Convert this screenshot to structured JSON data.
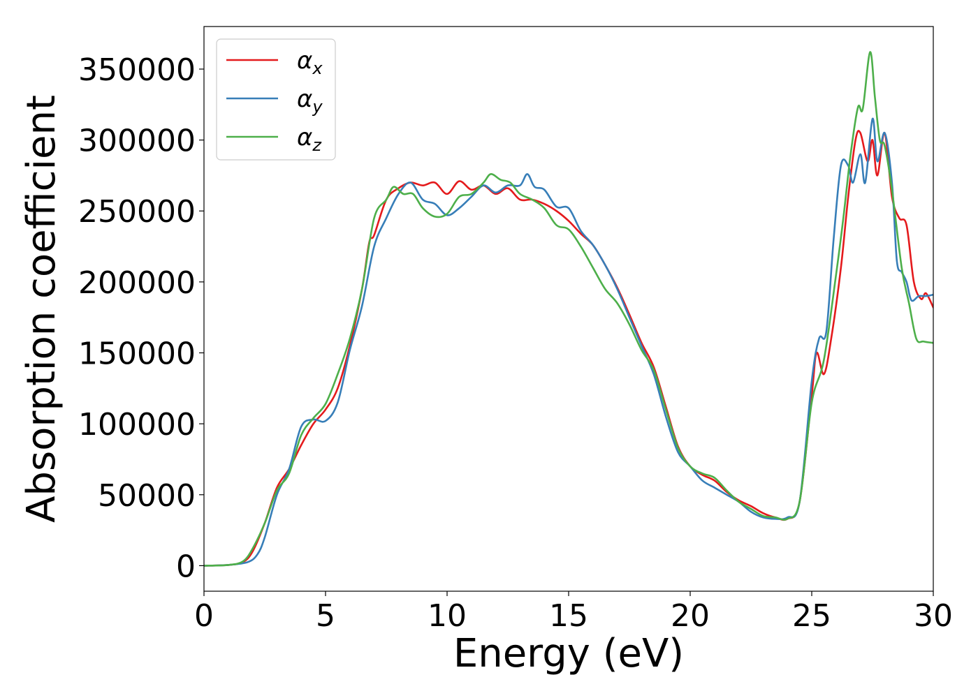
{
  "chart_data": {
    "type": "line",
    "title": "",
    "xlabel": "Energy (eV)",
    "ylabel": "Absorption coefficient",
    "xlim": [
      0,
      30
    ],
    "ylim": [
      -18000,
      380000
    ],
    "xticks": [
      0,
      5,
      10,
      15,
      20,
      25,
      30
    ],
    "xtick_labels": [
      "0",
      "5",
      "10",
      "15",
      "20",
      "25",
      "30"
    ],
    "yticks": [
      0,
      50000,
      100000,
      150000,
      200000,
      250000,
      300000,
      350000
    ],
    "ytick_labels": [
      "0",
      "50000",
      "100000",
      "150000",
      "200000",
      "250000",
      "300000",
      "350000"
    ],
    "grid": false,
    "legend_position": "top-left",
    "series": [
      {
        "name": "α",
        "subscript": "x",
        "color": "#e41a1c",
        "points": [
          [
            0,
            0
          ],
          [
            1,
            500
          ],
          [
            1.6,
            2500
          ],
          [
            2,
            10000
          ],
          [
            2.5,
            30000
          ],
          [
            3,
            55000
          ],
          [
            3.5,
            68000
          ],
          [
            4,
            85000
          ],
          [
            4.5,
            100000
          ],
          [
            5,
            110000
          ],
          [
            5.5,
            125000
          ],
          [
            6,
            155000
          ],
          [
            6.5,
            195000
          ],
          [
            6.8,
            228000
          ],
          [
            7,
            233000
          ],
          [
            7.5,
            258000
          ],
          [
            8,
            266000
          ],
          [
            8.5,
            270000
          ],
          [
            9,
            268000
          ],
          [
            9.5,
            270000
          ],
          [
            10,
            262000
          ],
          [
            10.5,
            271000
          ],
          [
            11,
            265000
          ],
          [
            11.5,
            268000
          ],
          [
            12,
            262000
          ],
          [
            12.5,
            266000
          ],
          [
            13,
            258000
          ],
          [
            13.5,
            258000
          ],
          [
            14,
            255000
          ],
          [
            14.5,
            250000
          ],
          [
            15,
            243000
          ],
          [
            15.5,
            234000
          ],
          [
            16,
            226000
          ],
          [
            16.5,
            212000
          ],
          [
            17,
            196000
          ],
          [
            17.5,
            177000
          ],
          [
            18,
            157000
          ],
          [
            18.5,
            140000
          ],
          [
            19,
            112000
          ],
          [
            19.5,
            84000
          ],
          [
            20,
            70000
          ],
          [
            20.5,
            64000
          ],
          [
            21,
            60000
          ],
          [
            21.5,
            52000
          ],
          [
            22,
            46000
          ],
          [
            22.5,
            42000
          ],
          [
            23,
            37000
          ],
          [
            23.5,
            34000
          ],
          [
            24,
            33000
          ],
          [
            24.5,
            45000
          ],
          [
            25,
            120000
          ],
          [
            25.2,
            150000
          ],
          [
            25.5,
            135000
          ],
          [
            25.8,
            160000
          ],
          [
            26.2,
            210000
          ],
          [
            26.5,
            260000
          ],
          [
            26.8,
            300000
          ],
          [
            27,
            305000
          ],
          [
            27.3,
            285000
          ],
          [
            27.5,
            300000
          ],
          [
            27.7,
            275000
          ],
          [
            28,
            305000
          ],
          [
            28.3,
            260000
          ],
          [
            28.6,
            245000
          ],
          [
            28.9,
            240000
          ],
          [
            29.2,
            200000
          ],
          [
            29.5,
            188000
          ],
          [
            29.7,
            192000
          ],
          [
            30,
            182000
          ]
        ]
      },
      {
        "name": "α",
        "subscript": "y",
        "color": "#377eb8",
        "points": [
          [
            0,
            0
          ],
          [
            1,
            500
          ],
          [
            1.8,
            2500
          ],
          [
            2.2,
            8000
          ],
          [
            2.5,
            20000
          ],
          [
            3,
            50000
          ],
          [
            3.5,
            68000
          ],
          [
            4,
            98000
          ],
          [
            4.5,
            103000
          ],
          [
            5,
            102000
          ],
          [
            5.5,
            115000
          ],
          [
            6,
            152000
          ],
          [
            6.5,
            183000
          ],
          [
            7,
            225000
          ],
          [
            7.5,
            245000
          ],
          [
            8,
            262000
          ],
          [
            8.5,
            270000
          ],
          [
            9,
            258000
          ],
          [
            9.5,
            255000
          ],
          [
            10,
            247000
          ],
          [
            10.5,
            252000
          ],
          [
            11,
            260000
          ],
          [
            11.5,
            268000
          ],
          [
            12,
            263000
          ],
          [
            12.5,
            268000
          ],
          [
            13,
            268000
          ],
          [
            13.3,
            276000
          ],
          [
            13.6,
            267000
          ],
          [
            14,
            265000
          ],
          [
            14.5,
            253000
          ],
          [
            15,
            252000
          ],
          [
            15.5,
            236000
          ],
          [
            16,
            226000
          ],
          [
            16.5,
            212000
          ],
          [
            17,
            195000
          ],
          [
            17.5,
            175000
          ],
          [
            18,
            155000
          ],
          [
            18.5,
            135000
          ],
          [
            19,
            105000
          ],
          [
            19.5,
            80000
          ],
          [
            20,
            70000
          ],
          [
            20.5,
            60000
          ],
          [
            21,
            55000
          ],
          [
            21.5,
            50000
          ],
          [
            22,
            45000
          ],
          [
            22.5,
            38000
          ],
          [
            23,
            34000
          ],
          [
            23.5,
            33000
          ],
          [
            24,
            34000
          ],
          [
            24.5,
            45000
          ],
          [
            25,
            130000
          ],
          [
            25.3,
            160000
          ],
          [
            25.6,
            165000
          ],
          [
            25.9,
            230000
          ],
          [
            26.2,
            282000
          ],
          [
            26.5,
            282000
          ],
          [
            26.7,
            270000
          ],
          [
            27,
            290000
          ],
          [
            27.2,
            270000
          ],
          [
            27.5,
            315000
          ],
          [
            27.7,
            285000
          ],
          [
            28,
            305000
          ],
          [
            28.3,
            270000
          ],
          [
            28.5,
            215000
          ],
          [
            28.7,
            207000
          ],
          [
            28.9,
            200000
          ],
          [
            29.1,
            187000
          ],
          [
            29.4,
            190000
          ],
          [
            29.7,
            190000
          ],
          [
            30,
            191000
          ]
        ]
      },
      {
        "name": "α",
        "subscript": "z",
        "color": "#4daf4a",
        "points": [
          [
            0,
            0
          ],
          [
            1,
            500
          ],
          [
            1.6,
            3000
          ],
          [
            2,
            12000
          ],
          [
            2.5,
            30000
          ],
          [
            3,
            53000
          ],
          [
            3.5,
            65000
          ],
          [
            4,
            92000
          ],
          [
            4.5,
            104000
          ],
          [
            5,
            114000
          ],
          [
            5.5,
            135000
          ],
          [
            6,
            160000
          ],
          [
            6.5,
            195000
          ],
          [
            7,
            245000
          ],
          [
            7.5,
            258000
          ],
          [
            7.8,
            267000
          ],
          [
            8.2,
            262000
          ],
          [
            8.6,
            262000
          ],
          [
            9,
            252000
          ],
          [
            9.5,
            246000
          ],
          [
            10,
            248000
          ],
          [
            10.5,
            260000
          ],
          [
            11,
            262000
          ],
          [
            11.5,
            270000
          ],
          [
            11.8,
            276000
          ],
          [
            12.2,
            272000
          ],
          [
            12.6,
            270000
          ],
          [
            13,
            262000
          ],
          [
            13.5,
            258000
          ],
          [
            14,
            252000
          ],
          [
            14.5,
            240000
          ],
          [
            15,
            237000
          ],
          [
            15.5,
            225000
          ],
          [
            16,
            210000
          ],
          [
            16.5,
            195000
          ],
          [
            17,
            185000
          ],
          [
            17.5,
            170000
          ],
          [
            18,
            152000
          ],
          [
            18.5,
            138000
          ],
          [
            19,
            110000
          ],
          [
            19.5,
            83000
          ],
          [
            20,
            70000
          ],
          [
            20.5,
            65000
          ],
          [
            21,
            62000
          ],
          [
            21.5,
            53000
          ],
          [
            22,
            45000
          ],
          [
            22.5,
            40000
          ],
          [
            23,
            35000
          ],
          [
            23.5,
            34000
          ],
          [
            24,
            33000
          ],
          [
            24.5,
            45000
          ],
          [
            25,
            115000
          ],
          [
            25.5,
            145000
          ],
          [
            26,
            205000
          ],
          [
            26.3,
            245000
          ],
          [
            26.6,
            290000
          ],
          [
            26.9,
            323000
          ],
          [
            27.1,
            322000
          ],
          [
            27.4,
            362000
          ],
          [
            27.6,
            330000
          ],
          [
            27.8,
            300000
          ],
          [
            28,
            296000
          ],
          [
            28.3,
            265000
          ],
          [
            28.7,
            210000
          ],
          [
            29,
            185000
          ],
          [
            29.3,
            160000
          ],
          [
            29.6,
            158000
          ],
          [
            30,
            157000
          ]
        ]
      }
    ]
  }
}
